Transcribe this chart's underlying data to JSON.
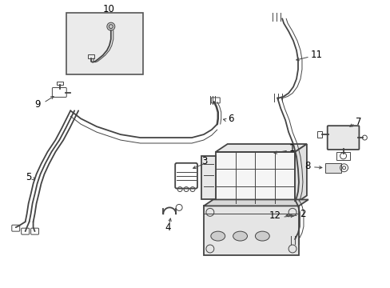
{
  "bg_color": "#ffffff",
  "line_color": "#444444",
  "label_color": "#000000",
  "fig_width": 4.89,
  "fig_height": 3.6,
  "dpi": 100,
  "lw": 1.3,
  "lw_thin": 0.7,
  "lw_thick": 1.8,
  "fontsize": 7.5
}
